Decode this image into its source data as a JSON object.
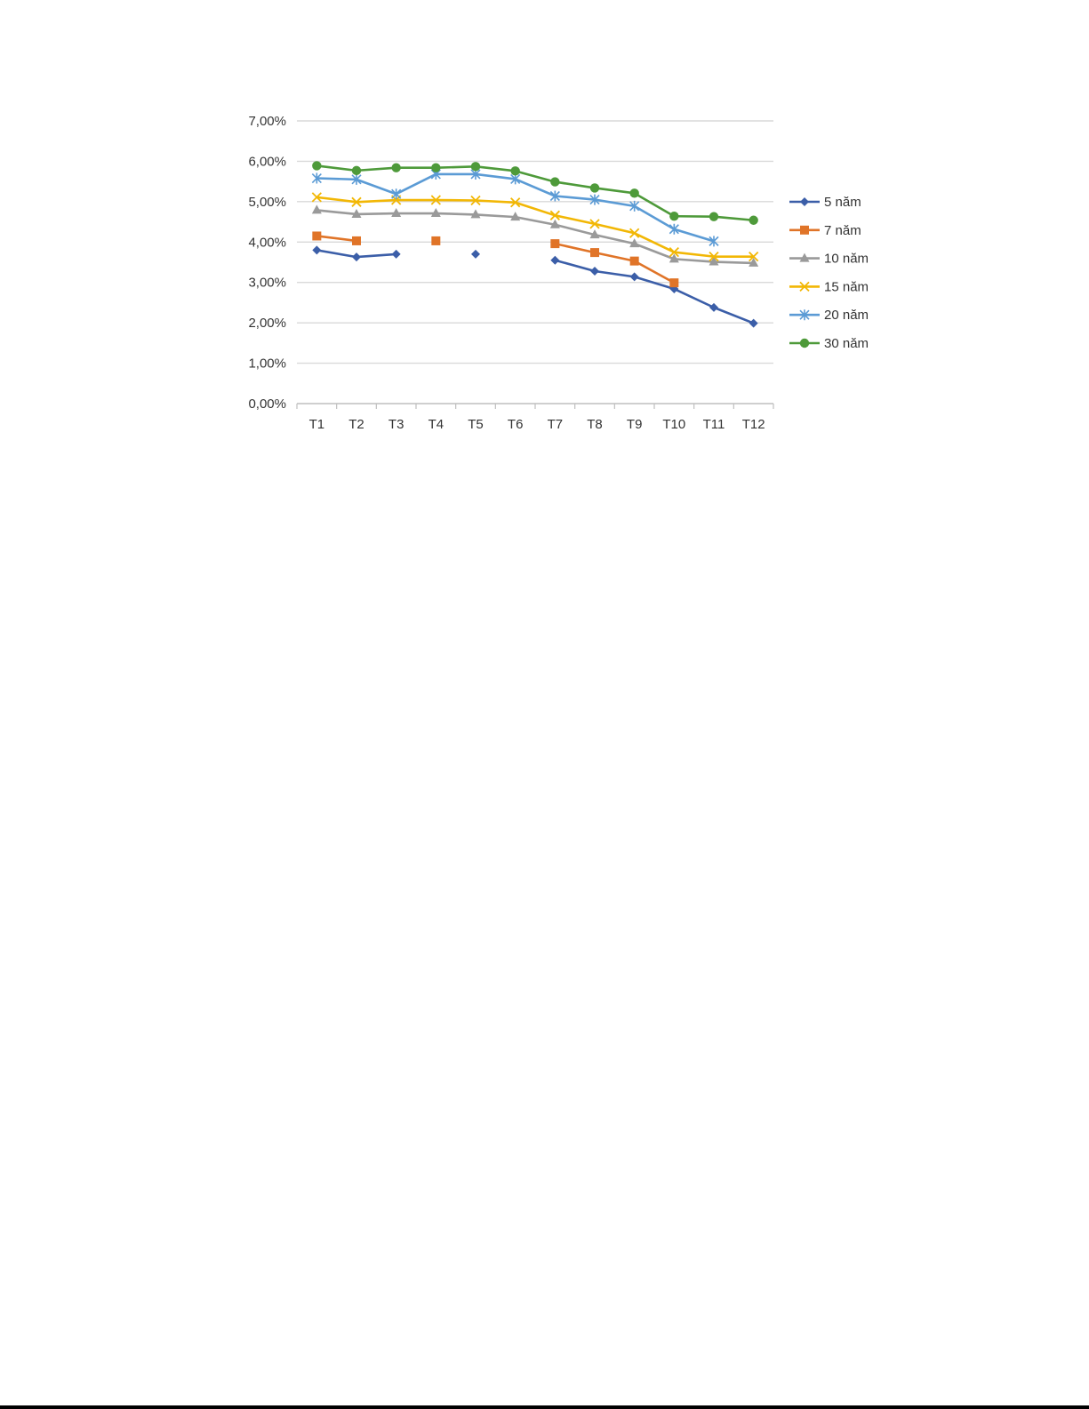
{
  "chart_data": {
    "type": "line",
    "title": "",
    "xlabel": "",
    "ylabel": "",
    "categories": [
      "T1",
      "T2",
      "T3",
      "T4",
      "T5",
      "T6",
      "T7",
      "T8",
      "T9",
      "T10",
      "T11",
      "T12"
    ],
    "ylim": [
      0,
      7
    ],
    "yticks": [
      0,
      1,
      2,
      3,
      4,
      5,
      6,
      7
    ],
    "ytick_labels": [
      "0,00%",
      "1,00%",
      "2,00%",
      "3,00%",
      "4,00%",
      "5,00%",
      "6,00%",
      "7,00%"
    ],
    "grid": true,
    "legend_position": "right",
    "series": [
      {
        "name": "5 năm",
        "color": "#3b5ea8",
        "marker": "diamond",
        "values": [
          3.8,
          3.63,
          3.7,
          null,
          3.7,
          null,
          3.55,
          3.28,
          3.14,
          2.84,
          2.38,
          1.99
        ]
      },
      {
        "name": "7 năm",
        "color": "#e07428",
        "marker": "square",
        "values": [
          4.15,
          4.03,
          null,
          4.03,
          null,
          null,
          3.96,
          3.74,
          3.53,
          2.99,
          null,
          null
        ]
      },
      {
        "name": "10 năm",
        "color": "#9a9a9a",
        "marker": "triangle",
        "values": [
          4.79,
          4.69,
          4.71,
          4.71,
          4.68,
          4.62,
          4.43,
          4.18,
          3.96,
          3.58,
          3.51,
          3.48
        ]
      },
      {
        "name": "15 năm",
        "color": "#f2b705",
        "marker": "x",
        "values": [
          5.11,
          4.99,
          5.04,
          5.04,
          5.03,
          4.98,
          4.66,
          4.45,
          4.22,
          3.75,
          3.64,
          3.64
        ]
      },
      {
        "name": "20 năm",
        "color": "#5b9bd5",
        "marker": "asterisk",
        "values": [
          5.58,
          5.55,
          5.19,
          5.68,
          5.68,
          5.56,
          5.14,
          5.05,
          4.89,
          4.32,
          4.02,
          null
        ]
      },
      {
        "name": "30 năm",
        "color": "#4e9a3a",
        "marker": "circle",
        "values": [
          5.89,
          5.77,
          5.84,
          5.84,
          5.87,
          5.76,
          5.49,
          5.34,
          5.21,
          4.64,
          4.63,
          4.54
        ]
      }
    ]
  }
}
